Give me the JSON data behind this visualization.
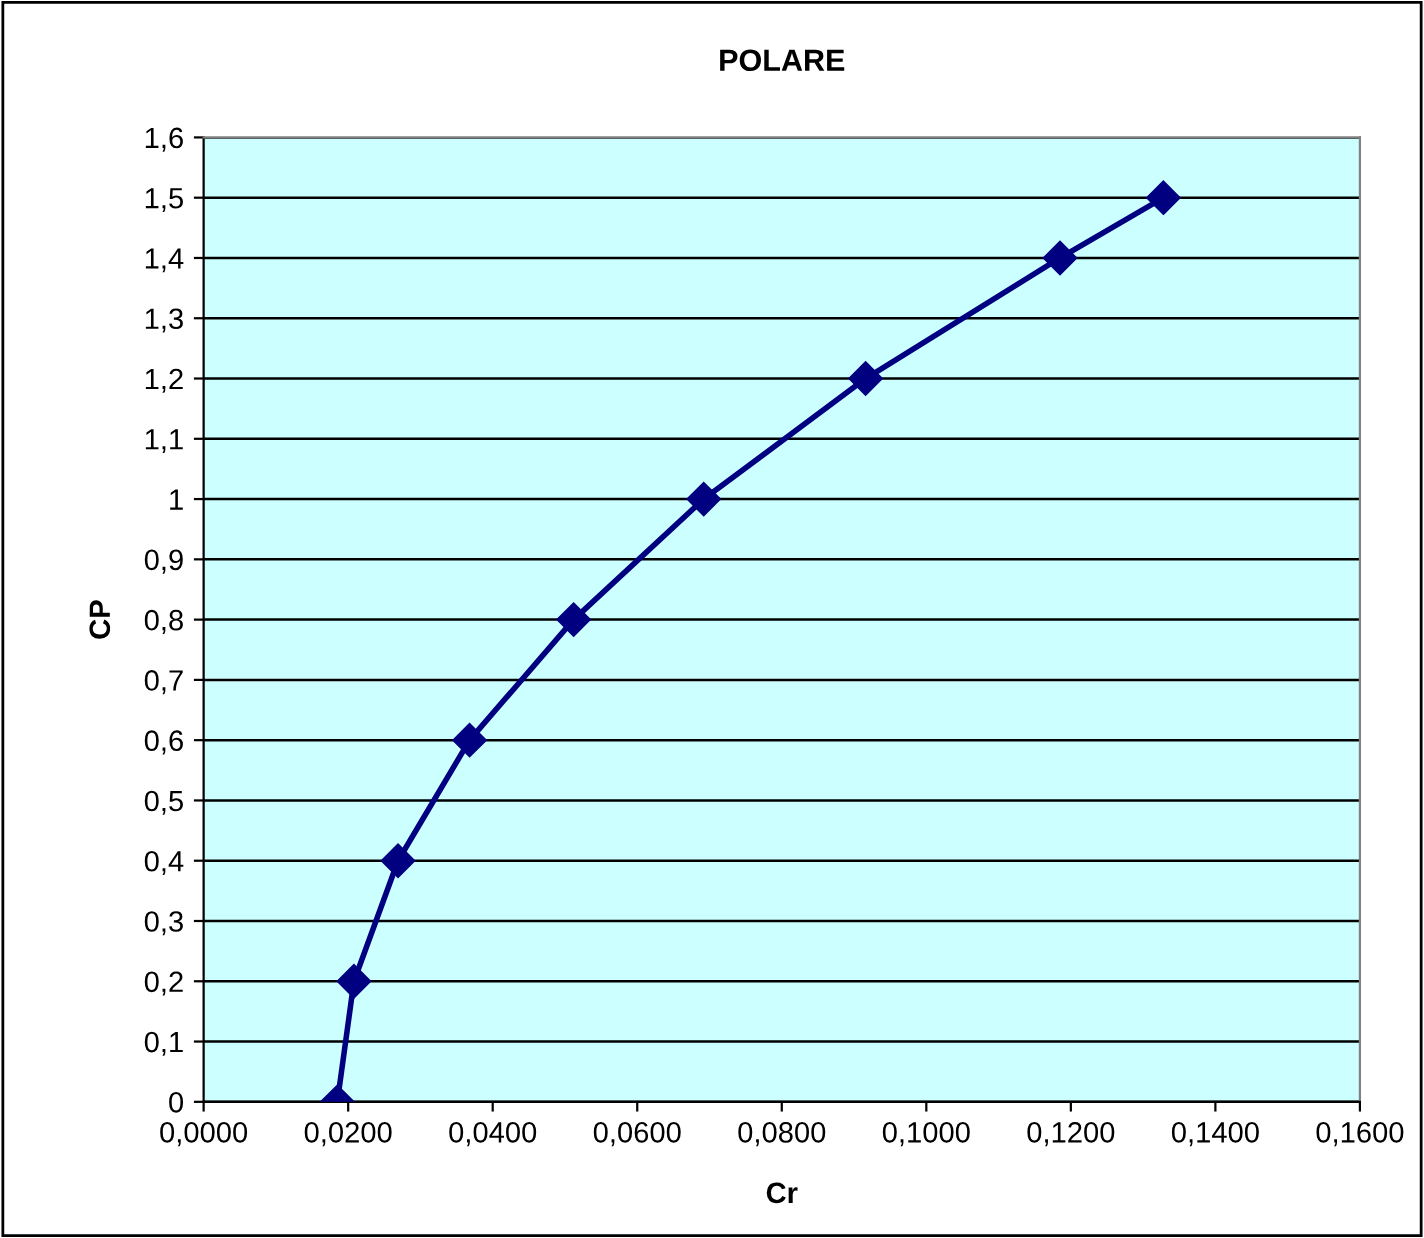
{
  "chart_data": {
    "type": "line",
    "title": "POLARE",
    "xlabel": "Cr",
    "ylabel": "CP",
    "series": [
      {
        "color": "#000080",
        "x": [
          0.0185,
          0.0208,
          0.0269,
          0.0368,
          0.0512,
          0.0692,
          0.0916,
          0.1185,
          0.1328
        ],
        "values": [
          0,
          0.2,
          0.4,
          0.6,
          0.8,
          1.0,
          1.2,
          1.4,
          1.5
        ]
      }
    ],
    "marker": "diamond",
    "line_style": "solid",
    "grid": "y",
    "legend": false,
    "xlim": [
      0,
      0.16
    ],
    "ylim": [
      0,
      1.6
    ],
    "xticks": [
      {
        "value": 0,
        "label": "0,0000"
      },
      {
        "value": 0.02,
        "label": "0,0200"
      },
      {
        "value": 0.04,
        "label": "0,0400"
      },
      {
        "value": 0.06,
        "label": "0,0600"
      },
      {
        "value": 0.08,
        "label": "0,0800"
      },
      {
        "value": 0.1,
        "label": "0,1000"
      },
      {
        "value": 0.12,
        "label": "0,1200"
      },
      {
        "value": 0.14,
        "label": "0,1400"
      },
      {
        "value": 0.16,
        "label": "0,1600"
      }
    ],
    "yticks": [
      0,
      {
        "value": 0.1,
        "label": "0,1"
      },
      {
        "value": 0.2,
        "label": "0,2"
      },
      {
        "value": 0.3,
        "label": "0,3"
      },
      {
        "value": 0.4,
        "label": "0,4"
      },
      {
        "value": 0.5,
        "label": "0,5"
      },
      {
        "value": 0.6,
        "label": "0,6"
      },
      {
        "value": 0.7,
        "label": "0,7"
      },
      {
        "value": 0.8,
        "label": "0,8"
      },
      {
        "value": 0.9,
        "label": "0,9"
      },
      1,
      {
        "value": 1.1,
        "label": "1,1"
      },
      {
        "value": 1.2,
        "label": "1,2"
      },
      {
        "value": 1.3,
        "label": "1,3"
      },
      {
        "value": 1.4,
        "label": "1,4"
      },
      {
        "value": 1.5,
        "label": "1,5"
      },
      {
        "value": 1.6,
        "label": "1,6"
      }
    ]
  }
}
